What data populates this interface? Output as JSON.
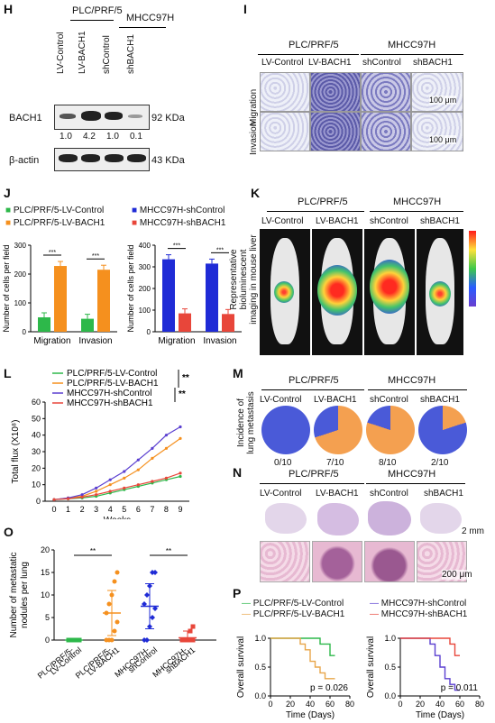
{
  "panels": {
    "H": "H",
    "I": "I",
    "J": "J",
    "K": "K",
    "L": "L",
    "M": "M",
    "N": "N",
    "O": "O",
    "P": "P"
  },
  "H": {
    "group1": "PLC/PRF/5",
    "group2": "MHCC97H",
    "lanes": [
      "LV-Control",
      "LV-BACH1",
      "shControl",
      "shBACH1"
    ],
    "row1": "BACH1",
    "row1_size": "92 KDa",
    "ratios": [
      "1.0",
      "4.2",
      "1.0",
      "0.1"
    ],
    "row2": "β-actin",
    "row2_size": "43 KDa"
  },
  "I": {
    "group1": "PLC/PRF/5",
    "group2": "MHCC97H",
    "cols": [
      "LV-Control",
      "LV-BACH1",
      "shControl",
      "shBACH1"
    ],
    "rows": [
      "Migration",
      "Invasion"
    ],
    "scale": "100 μm"
  },
  "J": {
    "legend": [
      "PLC/PRF/5-LV-Control",
      "PLC/PRF/5-LV-BACH1",
      "MHCC97H-shControl",
      "MHCC97H-shBACH1"
    ],
    "ylabel": "Number of cells per field",
    "sig": "***"
  },
  "K": {
    "group1": "PLC/PRF/5",
    "group2": "MHCC97H",
    "cols": [
      "LV-Control",
      "LV-BACH1",
      "shControl",
      "shBACH1"
    ],
    "ylabel": [
      "Representative",
      "bioluminescent",
      "imaging in mouse liver"
    ]
  },
  "L": {
    "sig": "**"
  },
  "M": {
    "group1": "PLC/PRF/5",
    "group2": "MHCC97H",
    "cols": [
      "LV-Control",
      "LV-BACH1",
      "shControl",
      "shBACH1"
    ],
    "ylabel": [
      "Incidence of",
      "lung metastasis"
    ],
    "ratios": [
      "0/10",
      "7/10",
      "8/10",
      "2/10"
    ],
    "fractions": [
      0,
      0.7,
      0.8,
      0.2
    ]
  },
  "N": {
    "group1": "PLC/PRF/5",
    "group2": "MHCC97H",
    "cols": [
      "LV-Control",
      "LV-BACH1",
      "shControl",
      "shBACH1"
    ],
    "scale1": "2 mm",
    "scale2": "200 μm"
  },
  "O": {
    "ylabel": [
      "Number of metastatic",
      "nodules per lung"
    ],
    "sig": "**"
  },
  "P": {
    "legend": [
      "PLC/PRF/5-LV-Control",
      "PLC/PRF/5-LV-BACH1",
      "MHCC97H-shControl",
      "MHCC97H-shBACH1"
    ],
    "ylabel": "Overall survival",
    "xlabel": "Time (Days)",
    "p1": "p = 0.026",
    "p2": "p = 0.011"
  },
  "colors": {
    "green": "#2db84a",
    "orange": "#f5901e",
    "blue": "#1f2bd6",
    "red": "#e8463a",
    "purple": "#5a3fd0",
    "tan": "#e8a64a",
    "pieBlue": "#4a5ad8",
    "pieOrange": "#f4a050"
  },
  "chart_data": [
    {
      "type": "bar",
      "title": "",
      "categories": [
        "Migration",
        "Invasion"
      ],
      "ylabel": "Number of cells per field",
      "ylim": [
        0,
        300
      ],
      "series": [
        {
          "name": "PLC/PRF/5-LV-Control",
          "values": [
            50,
            45
          ]
        },
        {
          "name": "PLC/PRF/5-LV-BACH1",
          "values": [
            228,
            215
          ]
        }
      ]
    },
    {
      "type": "bar",
      "title": "",
      "categories": [
        "Migration",
        "Invasion"
      ],
      "ylabel": "Number of cells per field",
      "ylim": [
        0,
        400
      ],
      "series": [
        {
          "name": "MHCC97H-shControl",
          "values": [
            335,
            315
          ]
        },
        {
          "name": "MHCC97H-shBACH1",
          "values": [
            85,
            82
          ]
        }
      ]
    },
    {
      "type": "line",
      "x": [
        0,
        1,
        2,
        3,
        4,
        5,
        6,
        7,
        8,
        9
      ],
      "xlabel": "Weeks",
      "ylabel": "Total flux (X10⁸)",
      "ylim": [
        0,
        60
      ],
      "yticks": [
        0,
        10,
        20,
        30,
        40,
        50,
        60
      ],
      "series": [
        {
          "name": "PLC/PRF/5-LV-Control",
          "values": [
            1,
            1.5,
            2,
            3,
            5,
            7,
            9,
            11,
            13,
            15
          ]
        },
        {
          "name": "PLC/PRF/5-LV-BACH1",
          "values": [
            1,
            2,
            3,
            6,
            10,
            14,
            19,
            26,
            32,
            38
          ]
        },
        {
          "name": "MHCC97H-shControl",
          "values": [
            1,
            2,
            4,
            8,
            13,
            18,
            25,
            32,
            40,
            45
          ]
        },
        {
          "name": "MHCC97H-shBACH1",
          "values": [
            1,
            1.5,
            2.5,
            4,
            6,
            8,
            10,
            12,
            14,
            17
          ]
        }
      ]
    },
    {
      "type": "scatter",
      "categories": [
        [
          "PLC/PRF/5-",
          "LV-Control"
        ],
        [
          "PLC/PRF/5-",
          "LV-BACH1"
        ],
        [
          "MHCC97H-",
          "shControl"
        ],
        [
          "MHCC97H-",
          "shBACH1"
        ]
      ],
      "ylabel": "Number of metastatic nodules per lung",
      "ylim": [
        0,
        20
      ],
      "yticks": [
        0,
        5,
        10,
        15,
        20
      ],
      "means": [
        0,
        6,
        7.5,
        0.5
      ],
      "sd": [
        0,
        5,
        5,
        1.5
      ],
      "points": [
        [
          0,
          0,
          0,
          0,
          0,
          0,
          0,
          0,
          0,
          0
        ],
        [
          0,
          0,
          0,
          2,
          4,
          6,
          8,
          10,
          13,
          15
        ],
        [
          0,
          0,
          3,
          5,
          7,
          8,
          10,
          12,
          15,
          15
        ],
        [
          0,
          0,
          0,
          0,
          0,
          0,
          0,
          0,
          2,
          3
        ]
      ]
    },
    {
      "type": "line",
      "xlabel": "Time (Days)",
      "ylabel": "Overall survival",
      "xlim": [
        0,
        80
      ],
      "ylim": [
        0,
        1
      ],
      "series": [
        {
          "name": "PLC/PRF/5-LV-Control",
          "x": [
            0,
            45,
            50,
            55,
            60,
            65
          ],
          "values": [
            1,
            1,
            0.9,
            0.9,
            0.7,
            0.7
          ]
        },
        {
          "name": "PLC/PRF/5-LV-BACH1",
          "x": [
            0,
            30,
            35,
            40,
            45,
            50,
            55,
            65
          ],
          "values": [
            1,
            0.9,
            0.8,
            0.6,
            0.5,
            0.4,
            0.3,
            0.3
          ]
        }
      ]
    },
    {
      "type": "line",
      "xlabel": "Time (Days)",
      "ylabel": "Overall survival",
      "xlim": [
        0,
        80
      ],
      "ylim": [
        0,
        1
      ],
      "series": [
        {
          "name": "MHCC97H-shControl",
          "x": [
            0,
            30,
            35,
            40,
            45,
            50,
            55,
            60
          ],
          "values": [
            1,
            0.9,
            0.7,
            0.5,
            0.3,
            0.2,
            0.1,
            0.1
          ]
        },
        {
          "name": "MHCC97H-shBACH1",
          "x": [
            0,
            45,
            50,
            55,
            60
          ],
          "values": [
            1,
            1,
            0.9,
            0.7,
            0.7
          ]
        }
      ]
    }
  ]
}
